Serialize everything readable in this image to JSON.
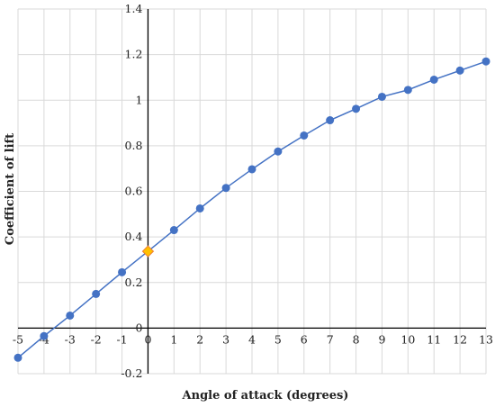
{
  "chart_data": {
    "type": "line",
    "title": "",
    "xlabel": "Angle of attack (degrees)",
    "ylabel": "Coefficient of lift",
    "xlim": [
      -5,
      13
    ],
    "ylim": [
      -0.2,
      1.4
    ],
    "xticks": [
      -5,
      -4,
      -3,
      -2,
      -1,
      0,
      1,
      2,
      3,
      4,
      5,
      6,
      7,
      8,
      9,
      10,
      11,
      12,
      13
    ],
    "yticks": [
      -0.2,
      0,
      0.2,
      0.4,
      0.6,
      0.8,
      1,
      1.2,
      1.4
    ],
    "ytick_labels": [
      "-0.2",
      "0",
      "0.2",
      "0.4",
      "0.6",
      "0.8",
      "1",
      "1.2",
      "1.4"
    ],
    "grid": true,
    "legend": "none",
    "series": [
      {
        "color": "#4472C4",
        "x": [
          -5,
          -4,
          -3,
          -2,
          -1,
          0,
          1,
          2,
          3,
          4,
          5,
          6,
          7,
          8,
          9,
          10,
          11,
          12,
          13
        ],
        "y": [
          -0.13,
          -0.035,
          0.055,
          0.15,
          0.245,
          0.337,
          0.43,
          0.525,
          0.615,
          0.697,
          0.775,
          0.845,
          0.912,
          0.962,
          1.015,
          1.045,
          1.09,
          1.13,
          1.17
        ]
      }
    ],
    "highlight": {
      "x": 0,
      "y": 0.337,
      "color": "#FFC000",
      "stroke": "#ED7D31",
      "marker": "diamond"
    }
  }
}
